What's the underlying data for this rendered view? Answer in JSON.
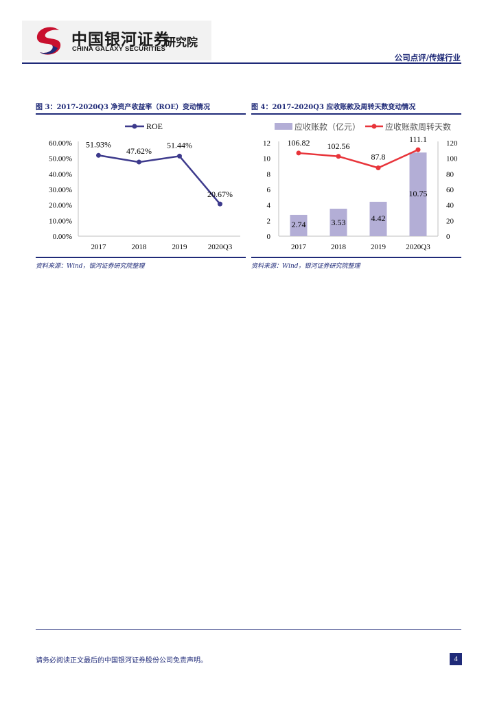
{
  "header": {
    "logo_cn": "中国银河证券",
    "logo_en": "CHINA GALAXY SECURITIES",
    "institute": "研究院",
    "report_type": "公司点评/传媒行业"
  },
  "figures": [
    {
      "title": "图 3：2017-2020Q3 净资产收益率（ROE）变动情况",
      "source": "资料来源：Wind，银河证券研究院整理"
    },
    {
      "title": "图 4：2017-2020Q3 应收账款及周转天数变动情况",
      "source": "资料来源：Wind，银河证券研究院整理"
    }
  ],
  "chart_data": [
    {
      "type": "line",
      "title": "2017-2020Q3 净资产收益率（ROE）变动情况",
      "categories": [
        "2017",
        "2018",
        "2019",
        "2020Q3"
      ],
      "series": [
        {
          "name": "ROE",
          "values": [
            51.93,
            47.62,
            51.44,
            20.67
          ],
          "labels": [
            "51.93%",
            "47.62%",
            "51.44%",
            "20.67%"
          ],
          "color": "#3d3a8c"
        }
      ],
      "yticks": [
        "0.00%",
        "10.00%",
        "20.00%",
        "30.00%",
        "40.00%",
        "50.00%",
        "60.00%"
      ],
      "ylim": [
        0,
        60
      ],
      "legend": "top"
    },
    {
      "type": "bar+line",
      "title": "2017-2020Q3 应收账款及周转天数变动情况",
      "categories": [
        "2017",
        "2018",
        "2019",
        "2020Q3"
      ],
      "series": [
        {
          "name": "应收账款（亿元）",
          "type": "bar",
          "axis": "left",
          "values": [
            2.74,
            3.53,
            4.42,
            10.75
          ],
          "labels": [
            "2.74",
            "3.53",
            "4.42",
            "10.75"
          ],
          "color": "#b3aed6"
        },
        {
          "name": "应收账款周转天数",
          "type": "line",
          "axis": "right",
          "values": [
            106.82,
            102.56,
            87.8,
            111.1
          ],
          "labels": [
            "106.82",
            "102.56",
            "87.8",
            "111.1"
          ],
          "color": "#e8343a"
        }
      ],
      "yticks_left": [
        "0",
        "2",
        "4",
        "6",
        "8",
        "10",
        "12"
      ],
      "ylim_left": [
        0,
        12
      ],
      "yticks_right": [
        "0",
        "20",
        "40",
        "60",
        "80",
        "100",
        "120"
      ],
      "ylim_right": [
        0,
        120
      ],
      "legend": "top"
    }
  ],
  "footer": {
    "disclaimer": "请务必阅读正文最后的中国银河证券股份公司免责声明。",
    "page": "4"
  }
}
